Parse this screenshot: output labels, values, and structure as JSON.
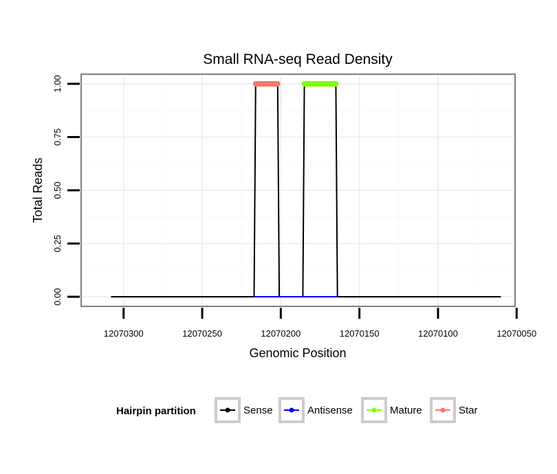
{
  "chart_data": {
    "type": "line",
    "title": "Small RNA-seq Read Density",
    "xlabel": "Genomic Position",
    "ylabel": "Total Reads",
    "x_reversed": true,
    "xlim": [
      12070327,
      12070051
    ],
    "ylim": [
      -0.045,
      1.045
    ],
    "x_ticks": [
      12070300,
      12070250,
      12070200,
      12070150,
      12070100,
      12070050
    ],
    "x_tick_labels": [
      "12070300",
      "12070250",
      "12070200",
      "12070150",
      "12070100",
      "12070050"
    ],
    "y_ticks": [
      0,
      0.25,
      0.5,
      0.75,
      1.0
    ],
    "y_tick_labels": [
      "0.00",
      "0.25",
      "0.50",
      "0.75",
      "1.00"
    ],
    "grid": true,
    "legend_title": "Hairpin partition",
    "legend_position": "bottom",
    "series": [
      {
        "name": "Sense",
        "color": "#000000",
        "points": [
          [
            12070308,
            0
          ],
          [
            12070217,
            0
          ],
          [
            12070216,
            1
          ],
          [
            12070202,
            1
          ],
          [
            12070201,
            0
          ],
          [
            12070186,
            0
          ],
          [
            12070185,
            1
          ],
          [
            12070165,
            1
          ],
          [
            12070164,
            0
          ],
          [
            12070060,
            0
          ]
        ]
      },
      {
        "name": "Antisense",
        "color": "#0000ff",
        "points": [
          [
            12070217,
            0
          ],
          [
            12070201,
            0
          ],
          [
            12070186,
            0
          ],
          [
            12070164,
            0
          ]
        ]
      },
      {
        "name": "Mature",
        "color": "#80ff00",
        "points": [
          [
            12070185,
            1
          ],
          [
            12070165,
            1
          ]
        ]
      },
      {
        "name": "Star",
        "color": "#f8766d",
        "points": [
          [
            12070216,
            1
          ],
          [
            12070202,
            1
          ]
        ]
      }
    ]
  }
}
